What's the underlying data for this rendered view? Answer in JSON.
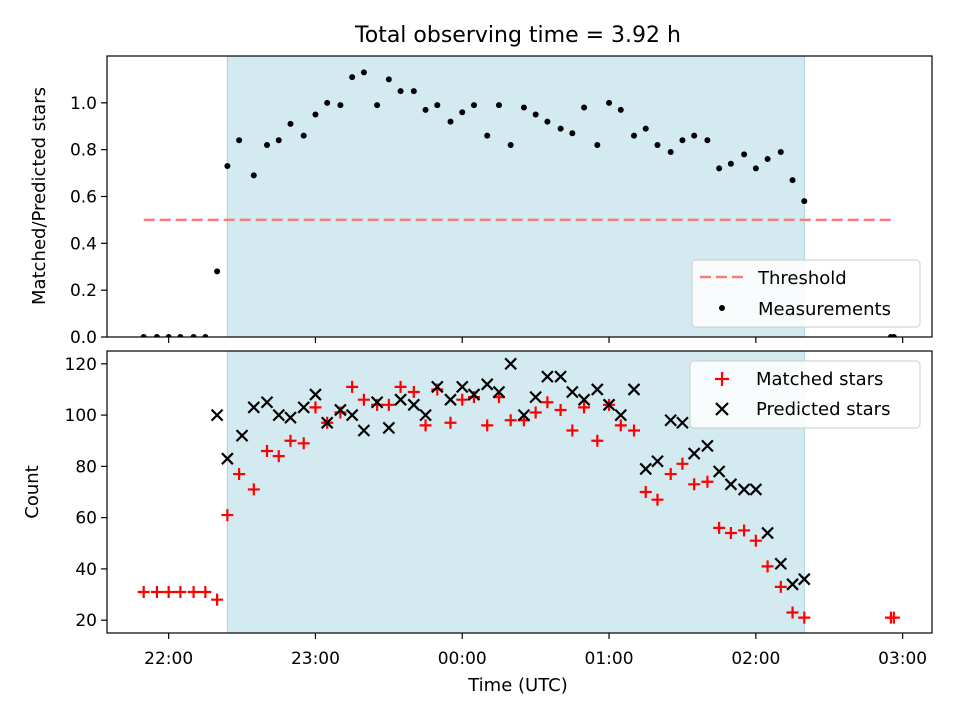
{
  "chart_data": {
    "type": "scatter",
    "title": "Total observing time = 3.92 h",
    "x_ticks": [
      "22:00",
      "23:00",
      "00:00",
      "01:00",
      "02:00",
      "03:00"
    ],
    "x_tick_hours": [
      22,
      23,
      24,
      25,
      26,
      27
    ],
    "xlabel": "Time (UTC)",
    "xlim": [
      21.58,
      27.2
    ],
    "shaded_interval": [
      22.4,
      26.33
    ],
    "shade_color": "#d3eaf0",
    "panels": [
      {
        "ylabel": "Matched/Predicted stars",
        "ylim": [
          0,
          1.2
        ],
        "yticks": [
          0.0,
          0.2,
          0.4,
          0.6,
          0.8,
          1.0
        ],
        "ytick_labels": [
          "0.0",
          "0.2",
          "0.4",
          "0.6",
          "0.8",
          "1.0"
        ],
        "legend": "bottom-right",
        "threshold": {
          "name": "Threshold",
          "value": 0.5,
          "x_range": [
            21.83,
            26.92
          ],
          "color": "#f08080",
          "style": "dashed"
        },
        "series": [
          {
            "name": "Measurements",
            "marker": "dot",
            "color": "#000000",
            "x": [
              21.83,
              21.92,
              22.0,
              22.08,
              22.17,
              22.25,
              22.33,
              22.4,
              22.48,
              22.58,
              22.67,
              22.75,
              22.83,
              22.92,
              23.0,
              23.08,
              23.17,
              23.25,
              23.33,
              23.42,
              23.5,
              23.58,
              23.67,
              23.75,
              23.83,
              23.92,
              24.0,
              24.08,
              24.17,
              24.25,
              24.33,
              24.42,
              24.5,
              24.58,
              24.67,
              24.75,
              24.83,
              24.92,
              25.0,
              25.08,
              25.17,
              25.25,
              25.33,
              25.42,
              25.5,
              25.58,
              25.67,
              25.75,
              25.83,
              25.92,
              26.0,
              26.08,
              26.17,
              26.25,
              26.33,
              26.92,
              26.94
            ],
            "y": [
              0.0,
              0.0,
              0.0,
              0.0,
              0.0,
              0.0,
              0.28,
              0.73,
              0.84,
              0.69,
              0.82,
              0.84,
              0.91,
              0.86,
              0.95,
              1.0,
              0.99,
              1.11,
              1.13,
              0.99,
              1.1,
              1.05,
              1.05,
              0.97,
              0.99,
              0.92,
              0.96,
              0.99,
              0.86,
              0.99,
              0.82,
              0.98,
              0.95,
              0.92,
              0.89,
              0.87,
              0.98,
              0.82,
              1.0,
              0.97,
              0.86,
              0.89,
              0.82,
              0.79,
              0.84,
              0.86,
              0.84,
              0.72,
              0.74,
              0.78,
              0.72,
              0.76,
              0.79,
              0.67,
              0.58,
              0.0,
              0.0
            ]
          }
        ]
      },
      {
        "ylabel": "Count",
        "ylim": [
          15,
          125
        ],
        "yticks": [
          20,
          40,
          60,
          80,
          100,
          120
        ],
        "ytick_labels": [
          "20",
          "40",
          "60",
          "80",
          "100",
          "120"
        ],
        "legend": "top-right",
        "series": [
          {
            "name": "Matched stars",
            "marker": "plus",
            "color": "#ff0000",
            "x": [
              21.83,
              21.92,
              22.0,
              22.08,
              22.17,
              22.25,
              22.33,
              22.4,
              22.48,
              22.58,
              22.67,
              22.75,
              22.83,
              22.92,
              23.0,
              23.08,
              23.17,
              23.25,
              23.33,
              23.42,
              23.5,
              23.58,
              23.67,
              23.75,
              23.83,
              23.92,
              24.0,
              24.08,
              24.17,
              24.25,
              24.33,
              24.42,
              24.5,
              24.58,
              24.67,
              24.75,
              24.83,
              24.92,
              25.0,
              25.08,
              25.17,
              25.25,
              25.33,
              25.42,
              25.5,
              25.58,
              25.67,
              25.75,
              25.83,
              25.92,
              26.0,
              26.08,
              26.17,
              26.25,
              26.33,
              26.92,
              26.94
            ],
            "y": [
              31,
              31,
              31,
              31,
              31,
              31,
              28,
              61,
              77,
              71,
              86,
              84,
              90,
              89,
              103,
              97,
              101,
              111,
              106,
              104,
              104,
              111,
              109,
              96,
              110,
              97,
              106,
              107,
              96,
              107,
              98,
              98,
              101,
              105,
              102,
              94,
              103,
              90,
              104,
              96,
              94,
              70,
              67,
              77,
              81,
              73,
              74,
              56,
              54,
              55,
              51,
              41,
              33,
              23,
              21,
              21,
              21
            ]
          },
          {
            "name": "Predicted stars",
            "marker": "x",
            "color": "#000000",
            "x": [
              22.33,
              22.4,
              22.5,
              22.58,
              22.67,
              22.75,
              22.83,
              22.92,
              23.0,
              23.08,
              23.17,
              23.25,
              23.33,
              23.42,
              23.5,
              23.58,
              23.67,
              23.75,
              23.83,
              23.92,
              24.0,
              24.08,
              24.17,
              24.25,
              24.33,
              24.42,
              24.5,
              24.58,
              24.67,
              24.75,
              24.83,
              24.92,
              25.0,
              25.08,
              25.17,
              25.25,
              25.33,
              25.42,
              25.5,
              25.58,
              25.67,
              25.75,
              25.83,
              25.92,
              26.0,
              26.08,
              26.17,
              26.25,
              26.33
            ],
            "y": [
              100,
              83,
              92,
              103,
              105,
              100,
              99,
              103,
              108,
              97,
              102,
              100,
              94,
              105,
              95,
              106,
              104,
              100,
              111,
              106,
              111,
              108,
              112,
              109,
              120,
              100,
              107,
              115,
              115,
              109,
              106,
              110,
              104,
              100,
              110,
              79,
              82,
              98,
              97,
              85,
              88,
              78,
              73,
              71,
              71,
              54,
              42,
              34,
              36
            ]
          }
        ]
      }
    ]
  }
}
